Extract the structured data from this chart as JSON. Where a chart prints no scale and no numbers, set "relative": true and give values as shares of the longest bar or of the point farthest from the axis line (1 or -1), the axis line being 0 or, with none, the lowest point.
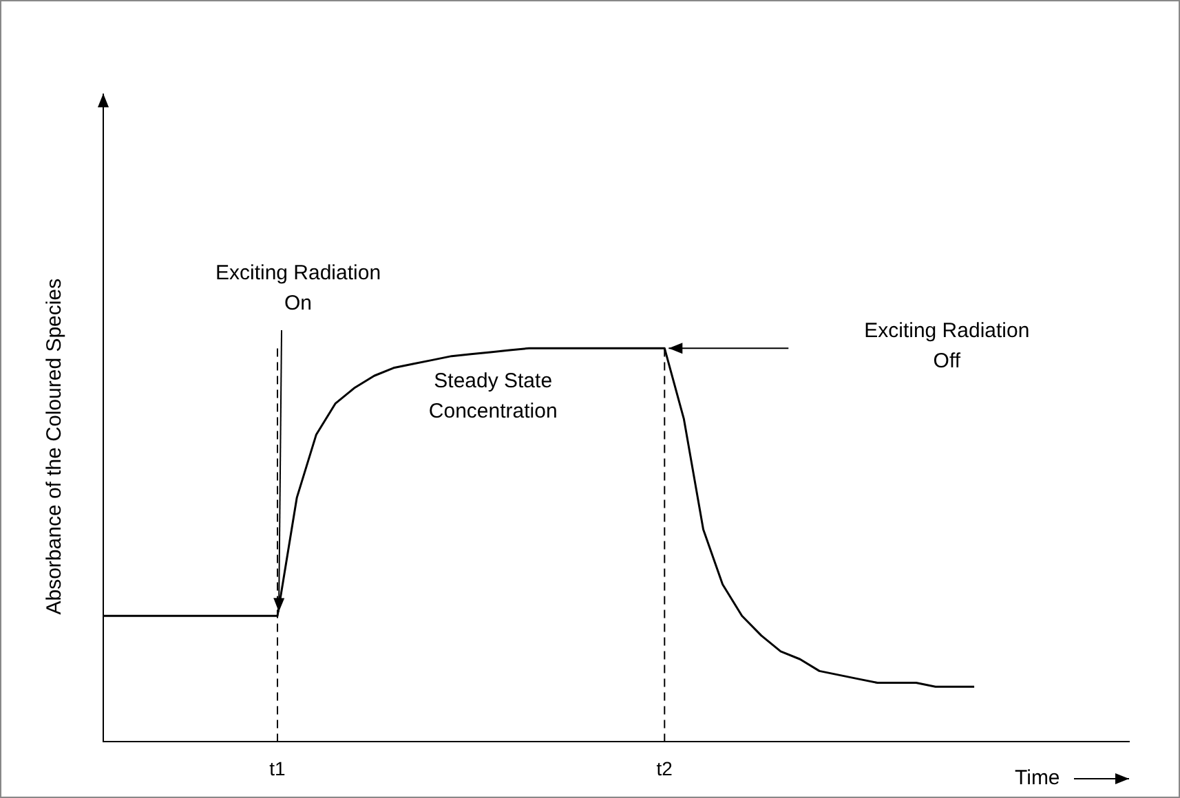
{
  "chart_data": {
    "type": "line",
    "relative": true,
    "xlabel": "Time",
    "ylabel": "Absorbance of the Coloured Species",
    "categories": [
      null,
      null,
      null,
      null,
      null,
      null,
      null,
      null,
      null,
      "t1",
      null,
      null,
      null,
      null,
      null,
      null,
      null,
      null,
      null,
      null,
      null,
      null,
      null,
      null,
      null,
      null,
      null,
      null,
      null,
      "t2",
      null,
      null,
      null,
      null,
      null,
      null,
      null,
      null,
      null,
      null,
      null,
      null,
      null,
      null,
      null,
      null,
      null,
      null,
      null,
      null,
      null,
      null,
      null,
      null
    ],
    "series": [
      {
        "color": "#000000",
        "values": [
          0.32,
          0.32,
          0.32,
          0.32,
          0.32,
          0.32,
          0.32,
          0.32,
          0.32,
          0.32,
          0.62,
          0.78,
          0.86,
          0.9,
          0.93,
          0.95,
          0.96,
          0.97,
          0.98,
          0.985,
          0.99,
          0.995,
          1,
          1,
          1,
          1,
          1,
          1,
          1,
          1,
          0.82,
          0.54,
          0.4,
          0.32,
          0.27,
          0.23,
          0.21,
          0.18,
          0.17,
          0.16,
          0.15,
          0.15,
          0.15,
          0.14,
          0.14,
          0.14,
          null,
          null,
          null,
          null,
          null,
          null,
          null,
          null
        ]
      }
    ],
    "ref_lines": [
      {
        "axis": "x",
        "value": "t1",
        "line_style": "dashed"
      },
      {
        "axis": "x",
        "value": "t2",
        "line_style": "dashed"
      }
    ],
    "annotations": [
      {
        "text": "Exciting Radiation\nOn",
        "x": "t1",
        "y": 0.32
      },
      "Steady State\nConcentration",
      "Exciting Radiation\nOff"
    ],
    "grid": false,
    "legend": false,
    "marker": "none",
    "line_style": "solid"
  }
}
